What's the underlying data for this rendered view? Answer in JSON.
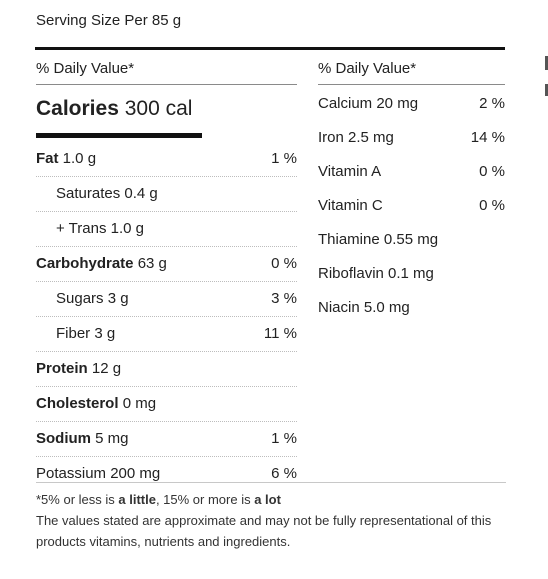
{
  "serving": "Serving Size Per 85 g",
  "left": {
    "header": "% Daily Value*",
    "calories_label": "Calories",
    "calories_value": "300 cal",
    "rows": [
      {
        "name": "Fat",
        "amount": "1.0 g",
        "dv": "1 %",
        "bold": true,
        "indent": false
      },
      {
        "name": "Saturates 0.4 g",
        "amount": "",
        "dv": "",
        "bold": false,
        "indent": true
      },
      {
        "name": "+ Trans 1.0 g",
        "amount": "",
        "dv": "",
        "bold": false,
        "indent": true
      },
      {
        "name": "Carbohydrate",
        "amount": "63 g",
        "dv": "0 %",
        "bold": true,
        "indent": false
      },
      {
        "name": "Sugars 3 g",
        "amount": "",
        "dv": "3 %",
        "bold": false,
        "indent": true
      },
      {
        "name": "Fiber 3 g",
        "amount": "",
        "dv": "11 %",
        "bold": false,
        "indent": true
      },
      {
        "name": "Protein",
        "amount": "12 g",
        "dv": "",
        "bold": true,
        "indent": false
      },
      {
        "name": "Cholesterol",
        "amount": "0 mg",
        "dv": "",
        "bold": true,
        "indent": false
      },
      {
        "name": "Sodium",
        "amount": "5 mg",
        "dv": "1 %",
        "bold": true,
        "indent": false
      },
      {
        "name": "Potassium 200 mg",
        "amount": "",
        "dv": "6 %",
        "bold": false,
        "indent": false
      }
    ]
  },
  "right": {
    "header": "% Daily Value*",
    "rows": [
      {
        "name": "Calcium 20 mg",
        "dv": "2 %"
      },
      {
        "name": "Iron 2.5 mg",
        "dv": "14 %"
      },
      {
        "name": "Vitamin A",
        "dv": "0 %"
      },
      {
        "name": "Vitamin C",
        "dv": "0 %"
      },
      {
        "name": "Thiamine 0.55 mg",
        "dv": ""
      },
      {
        "name": "Riboflavin 0.1 mg",
        "dv": ""
      },
      {
        "name": "Niacin 5.0 mg",
        "dv": ""
      }
    ]
  },
  "footer": {
    "line1_a": "*5% or less is ",
    "line1_b": "a little",
    "line1_c": ", 15% or more is ",
    "line1_d": "a lot",
    "line2": "The values stated are approximate and may not be fully representational of this products vitamins, nutrients and ingredients."
  }
}
